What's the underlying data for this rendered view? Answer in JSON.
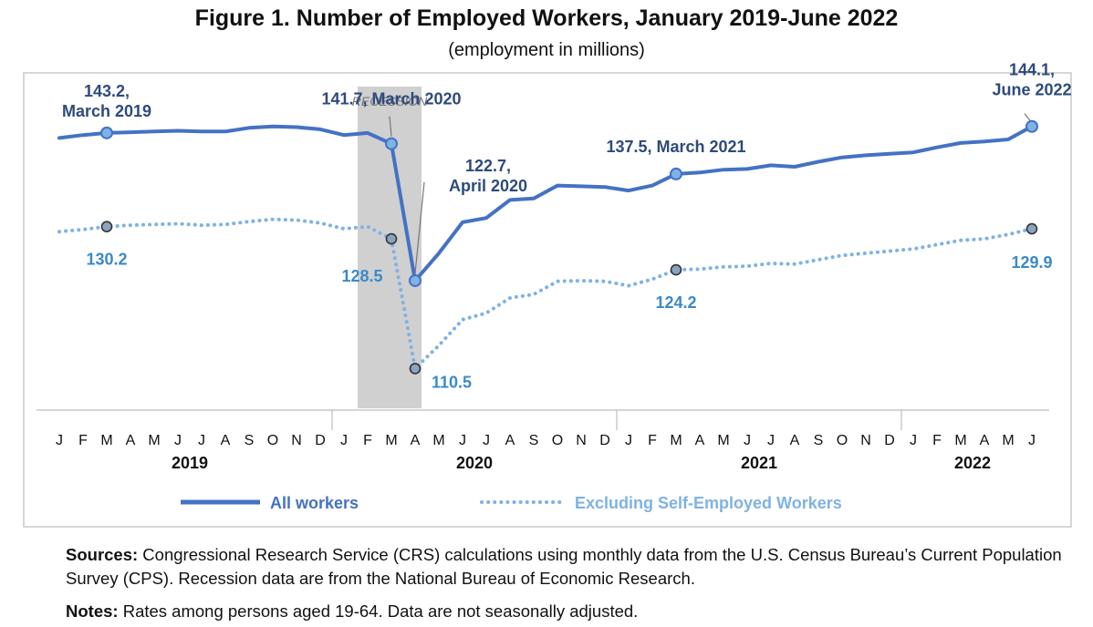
{
  "figure": {
    "title": "Figure 1. Number of Employed Workers, January 2019-June 2022",
    "subtitle": "(employment in millions)"
  },
  "colors": {
    "all_workers": "#4472c4",
    "excl_self": "#7fb2e5",
    "annotation_dark": "#2e4a7d",
    "annotation_light": "#3a8ac9",
    "recession_band": "#d0d0d0"
  },
  "chart_data": {
    "type": "line",
    "title": "Figure 1. Number of Employed Workers, January 2019-June 2022",
    "subtitle": "(employment in millions)",
    "x": [
      "J",
      "F",
      "M",
      "A",
      "M",
      "J",
      "J",
      "A",
      "S",
      "O",
      "N",
      "D",
      "J",
      "F",
      "M",
      "A",
      "M",
      "J",
      "J",
      "A",
      "S",
      "O",
      "N",
      "D",
      "J",
      "F",
      "M",
      "A",
      "M",
      "J",
      "J",
      "A",
      "S",
      "O",
      "N",
      "D",
      "J",
      "F",
      "M",
      "A",
      "M",
      "J"
    ],
    "years": [
      {
        "label": "2019",
        "start": 0,
        "end": 11
      },
      {
        "label": "2020",
        "start": 12,
        "end": 23
      },
      {
        "label": "2021",
        "start": 24,
        "end": 35
      },
      {
        "label": "2022",
        "start": 36,
        "end": 41
      }
    ],
    "ylim": [
      106,
      149
    ],
    "grid": false,
    "legend": "bottom",
    "recession": {
      "label": "RECESSION",
      "start": 13,
      "end": 15
    },
    "series": [
      {
        "name": "All workers",
        "style": "solid",
        "values": [
          142.5,
          142.9,
          143.2,
          143.3,
          143.4,
          143.5,
          143.4,
          143.4,
          143.9,
          144.1,
          144.0,
          143.7,
          142.9,
          143.2,
          141.7,
          122.7,
          126.5,
          130.8,
          131.4,
          133.9,
          134.1,
          135.9,
          135.8,
          135.7,
          135.2,
          135.9,
          137.5,
          137.7,
          138.1,
          138.2,
          138.7,
          138.5,
          139.2,
          139.8,
          140.1,
          140.3,
          140.5,
          141.2,
          141.8,
          142.0,
          142.3,
          144.1
        ]
      },
      {
        "name": "Excluding Self-Employed Workers",
        "style": "dotted",
        "values": [
          129.5,
          129.8,
          130.2,
          130.4,
          130.5,
          130.6,
          130.4,
          130.5,
          130.9,
          131.2,
          131.1,
          130.7,
          129.9,
          130.2,
          128.5,
          110.5,
          113.7,
          117.3,
          118.2,
          120.3,
          120.8,
          122.6,
          122.7,
          122.6,
          122.0,
          122.9,
          124.2,
          124.3,
          124.6,
          124.7,
          125.1,
          125.0,
          125.6,
          126.2,
          126.5,
          126.8,
          127.1,
          127.7,
          128.3,
          128.5,
          129.1,
          129.9
        ]
      }
    ],
    "annotations": [
      {
        "series": 0,
        "index": 2,
        "lines": [
          "143.2,",
          "March 2019"
        ]
      },
      {
        "series": 0,
        "index": 14,
        "lines": [
          "141.7, March 2020"
        ]
      },
      {
        "series": 0,
        "index": 15,
        "lines": [
          "122.7,",
          "April 2020"
        ]
      },
      {
        "series": 0,
        "index": 26,
        "lines": [
          "137.5, March 2021"
        ]
      },
      {
        "series": 0,
        "index": 41,
        "lines": [
          "144.1,",
          "June 2022"
        ]
      },
      {
        "series": 1,
        "index": 2,
        "lines": [
          "130.2"
        ]
      },
      {
        "series": 1,
        "index": 14,
        "lines": [
          "128.5"
        ]
      },
      {
        "series": 1,
        "index": 15,
        "lines": [
          "110.5"
        ]
      },
      {
        "series": 1,
        "index": 26,
        "lines": [
          "124.2"
        ]
      },
      {
        "series": 1,
        "index": 41,
        "lines": [
          "129.9"
        ]
      }
    ]
  },
  "notes": {
    "sources_label": "Sources:",
    "sources_text": " Congressional Research Service (CRS) calculations using monthly data from the U.S. Census Bureau’s Current Population Survey (CPS). Recession data are from the National Bureau of Economic Research.",
    "notes_label": "Notes:",
    "notes_text": " Rates among persons aged 19-64. Data are not seasonally adjusted."
  }
}
